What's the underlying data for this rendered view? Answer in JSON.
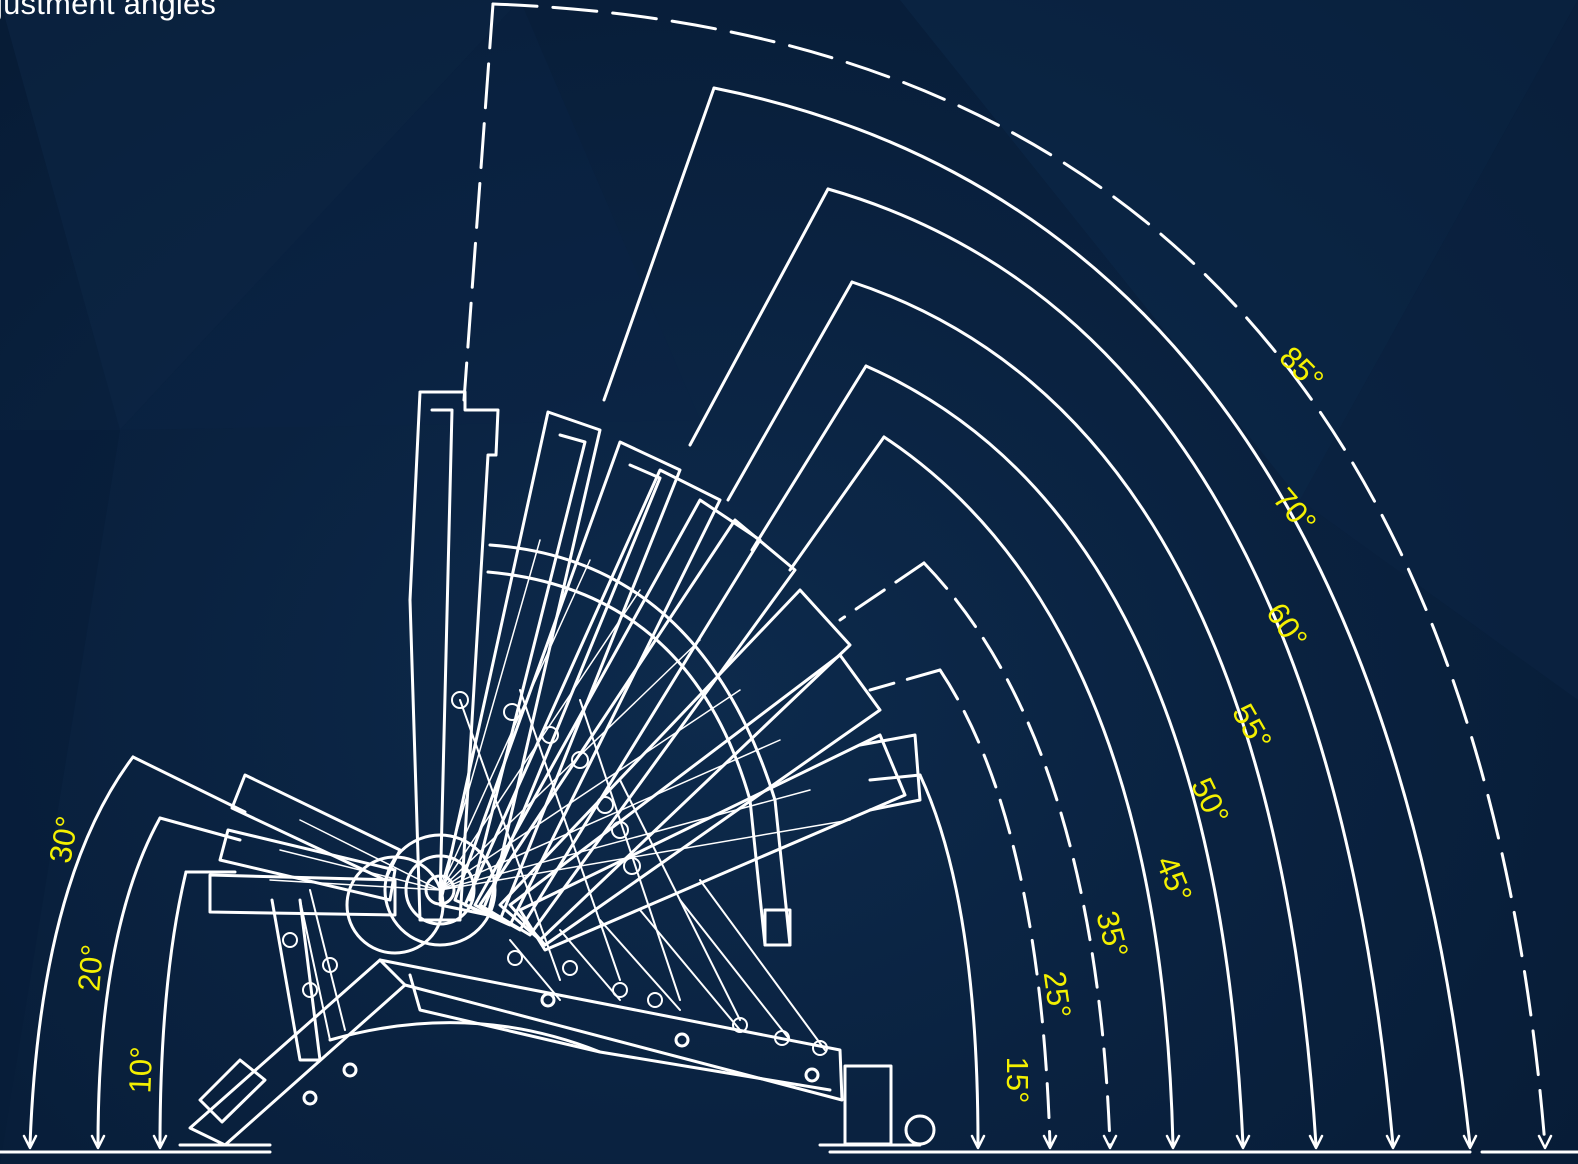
{
  "title": "justment angles",
  "colors": {
    "background": "#0a2240",
    "lines": "#ffffff",
    "labels": "#f4f000"
  },
  "angles": {
    "left": [
      "30°",
      "20°",
      "10°"
    ],
    "right": [
      "15°",
      "25°",
      "35°",
      "45°",
      "50°",
      "55°",
      "60°",
      "70°",
      "85°"
    ]
  }
}
